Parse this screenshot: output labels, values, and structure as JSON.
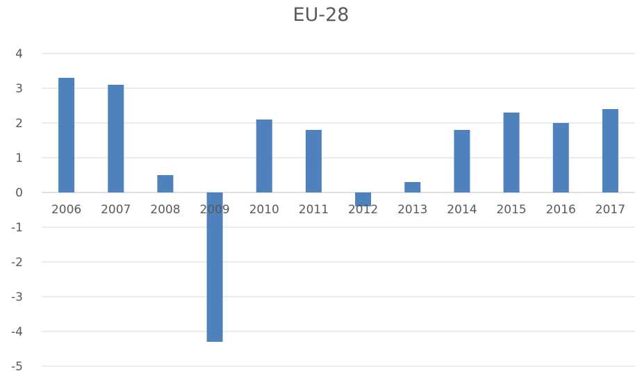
{
  "chart_data": {
    "type": "bar",
    "title": "EU-28",
    "xlabel": "",
    "ylabel": "",
    "categories": [
      "2006",
      "2007",
      "2008",
      "2009",
      "2010",
      "2011",
      "2012",
      "2013",
      "2014",
      "2015",
      "2016",
      "2017"
    ],
    "series": [
      {
        "values": [
          3.3,
          3.1,
          0.5,
          -4.3,
          2.1,
          1.8,
          -0.4,
          0.3,
          1.8,
          2.3,
          2.0,
          2.4
        ]
      }
    ],
    "ylim": [
      -5,
      4
    ],
    "yticks": [
      "4",
      "3",
      "2",
      "1",
      "0",
      "-1",
      "-2",
      "-3",
      "-4",
      "-5"
    ],
    "grid": true,
    "legend": "none",
    "colors": {
      "bar": "#4f81bd",
      "grid": "#d9d9d9",
      "text": "#595959"
    }
  }
}
